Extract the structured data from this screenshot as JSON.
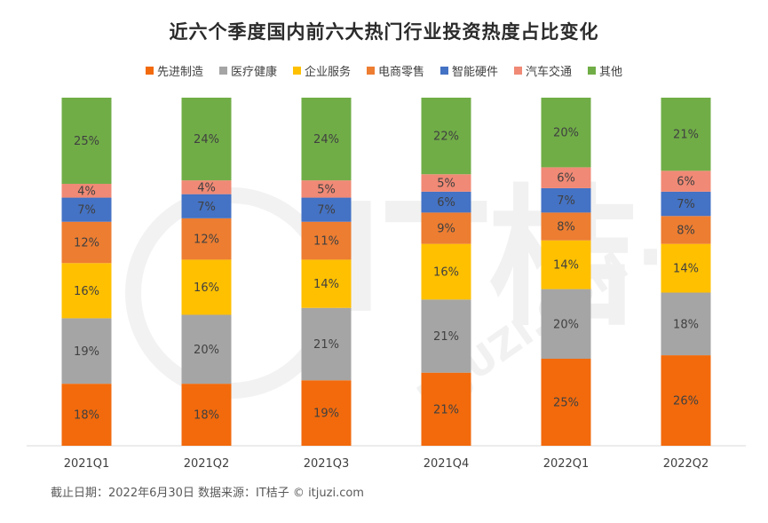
{
  "chart_data": {
    "type": "bar",
    "stacked": true,
    "title": "近六个季度国内前六大热门行业投资热度占比变化",
    "categories": [
      "2021Q1",
      "2021Q2",
      "2021Q3",
      "2021Q4",
      "2022Q1",
      "2022Q2"
    ],
    "series": [
      {
        "name": "先进制造",
        "color": "#f26a0c",
        "values": [
          18,
          18,
          19,
          21,
          25,
          26
        ]
      },
      {
        "name": "医疗健康",
        "color": "#a5a5a5",
        "values": [
          19,
          20,
          21,
          21,
          20,
          18
        ]
      },
      {
        "name": "企业服务",
        "color": "#ffc000",
        "values": [
          16,
          16,
          14,
          16,
          14,
          14
        ]
      },
      {
        "name": "电商零售",
        "color": "#ed7d31",
        "values": [
          12,
          12,
          11,
          9,
          8,
          8
        ]
      },
      {
        "name": "智能硬件",
        "color": "#4472c4",
        "values": [
          7,
          7,
          7,
          6,
          7,
          7
        ]
      },
      {
        "name": "汽车交通",
        "color": "#f08975",
        "values": [
          4,
          4,
          5,
          5,
          6,
          6
        ]
      },
      {
        "name": "其他",
        "color": "#70ad47",
        "values": [
          25,
          24,
          24,
          22,
          20,
          21
        ]
      }
    ],
    "value_suffix": "%",
    "legend_position": "top",
    "grid": false
  },
  "source_note": "截止日期：2022年6月30日    数据来源：IT桔子 © itjuzi.com",
  "watermark": {
    "brand": "IT桔子",
    "domain": "ITJUZI.COM"
  }
}
